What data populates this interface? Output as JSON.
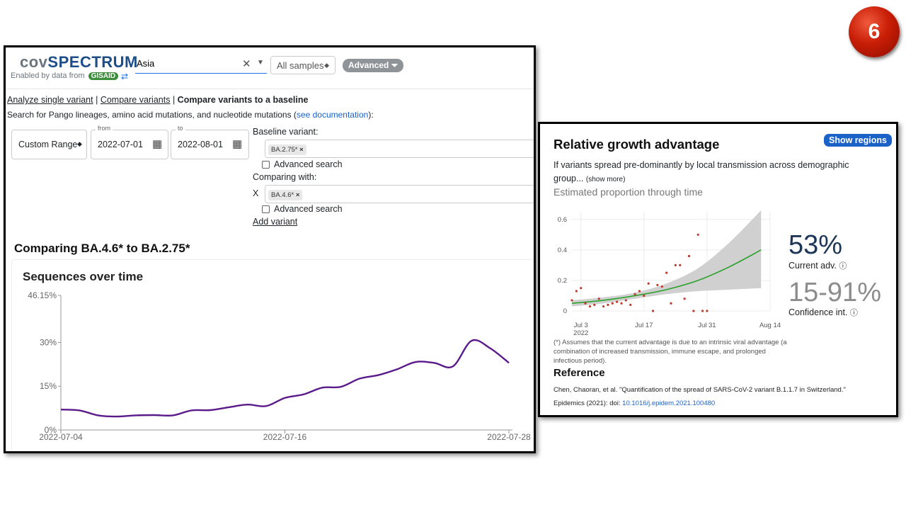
{
  "badge": {
    "number": "6"
  },
  "header": {
    "logo_part1": "cov",
    "logo_part2": "SPECTRUM",
    "logo_part3": "",
    "enabled_by": "Enabled by data from",
    "gisaid": "GISAID",
    "search_value": "Asia",
    "samples_select": "All samples",
    "advanced_label": "Advanced"
  },
  "nav": {
    "analyze_single": "Analyze single variant",
    "compare": "Compare variants",
    "compare_baseline": "Compare variants to a baseline"
  },
  "hint": {
    "text": "Search for Pango lineages, amino acid mutations, and nucleotide mutations (",
    "link": "see documentation",
    "end": "):"
  },
  "date_range": {
    "mode": "Custom Range",
    "from_label": "from",
    "from_value": "2022-07-01",
    "to_label": "to",
    "to_value": "2022-08-01"
  },
  "baseline": {
    "label": "Baseline variant:",
    "chip": "BA.2.75*",
    "advanced": "Advanced search"
  },
  "comparing": {
    "label": "Comparing with:",
    "remove": "X",
    "chip": "BA.4.6*",
    "advanced": "Advanced search",
    "add_variant": "Add variant"
  },
  "comparison_title": "Comparing BA.4.6* to BA.2.75*",
  "seq_chart": {
    "title": "Sequences over time",
    "y_ticks": [
      "0%",
      "15%",
      "30%",
      "46.15%"
    ],
    "x_ticks": [
      "2022-07-04",
      "2022-07-16",
      "2022-07-28"
    ]
  },
  "growth": {
    "title": "Relative growth advantage",
    "show_regions": "Show regions",
    "description": "If variants spread pre-dominantly by local transmission across demographic group...",
    "show_more": "(show more)",
    "subtitle": "Estimated proportion through time",
    "current_adv_value": "53%",
    "current_adv_label": "Current adv.",
    "confidence_value": "15-91%",
    "confidence_label": "Confidence int.",
    "footnote": "(*) Assumes that the current advantage is due to an intrinsic viral advantage (a combination of increased transmission, immune escape, and prolonged infectious period).",
    "reference_title": "Reference",
    "reference_text": "Chen, Chaoran, et al. \"Quantification of the spread of SARS-CoV-2 variant B.1.1.7 in Switzerland.\"",
    "reference_journal": "Epidemics (2021): doi:",
    "reference_doi": "10.1016/j.epidem.2021.100480",
    "y_ticks": [
      "0",
      "0.2",
      "0.4",
      "0.6"
    ],
    "x_ticks": [
      "Jul 3",
      "Jul 17",
      "Jul 31",
      "Aug 14"
    ],
    "x_year": "2022"
  },
  "chart_data": [
    {
      "type": "line",
      "title": "Sequences over time",
      "x": [
        "2022-07-04",
        "2022-07-05",
        "2022-07-06",
        "2022-07-07",
        "2022-07-08",
        "2022-07-09",
        "2022-07-10",
        "2022-07-11",
        "2022-07-12",
        "2022-07-13",
        "2022-07-14",
        "2022-07-15",
        "2022-07-16",
        "2022-07-17",
        "2022-07-18",
        "2022-07-19",
        "2022-07-20",
        "2022-07-21",
        "2022-07-22",
        "2022-07-23",
        "2022-07-24",
        "2022-07-25",
        "2022-07-26",
        "2022-07-27",
        "2022-07-28"
      ],
      "values": [
        7.0,
        6.7,
        5.0,
        4.6,
        5.0,
        5.1,
        5.0,
        6.7,
        6.8,
        7.8,
        8.7,
        8.2,
        11.0,
        12.2,
        14.5,
        14.8,
        17.6,
        18.8,
        20.8,
        23.3,
        23.0,
        21.8,
        30.6,
        28.0,
        23.0
      ],
      "ylabel": "",
      "ylim": [
        0,
        46.15
      ],
      "y_ticks": [
        "0%",
        "15%",
        "30%",
        "46.15%"
      ],
      "color": "#5b1a8a"
    },
    {
      "type": "scatter",
      "title": "Estimated proportion through time",
      "x_ticks": [
        "Jul 3",
        "Jul 17",
        "Jul 31",
        "Aug 14"
      ],
      "xlim": [
        "2022-07-01",
        "2022-08-14"
      ],
      "ylim": [
        0,
        0.65
      ],
      "observed_x": [
        "2022-07-01",
        "2022-07-02",
        "2022-07-03",
        "2022-07-04",
        "2022-07-05",
        "2022-07-06",
        "2022-07-07",
        "2022-07-08",
        "2022-07-09",
        "2022-07-10",
        "2022-07-11",
        "2022-07-12",
        "2022-07-13",
        "2022-07-14",
        "2022-07-15",
        "2022-07-16",
        "2022-07-17",
        "2022-07-18",
        "2022-07-19",
        "2022-07-20",
        "2022-07-21",
        "2022-07-22",
        "2022-07-23",
        "2022-07-24",
        "2022-07-25",
        "2022-07-26",
        "2022-07-27",
        "2022-07-28",
        "2022-07-29",
        "2022-07-30",
        "2022-07-31"
      ],
      "observed_y": [
        0.07,
        0.13,
        0.15,
        0.05,
        0.03,
        0.04,
        0.08,
        0.03,
        0.04,
        0.05,
        0.06,
        0.05,
        0.07,
        0.04,
        0.11,
        0.13,
        0.1,
        0.18,
        0.0,
        0.17,
        0.16,
        0.25,
        0.05,
        0.3,
        0.3,
        0.08,
        0.36,
        0.0,
        0.5,
        0.0,
        0.0
      ],
      "fit_x": [
        "2022-07-01",
        "2022-07-08",
        "2022-07-15",
        "2022-07-22",
        "2022-07-29",
        "2022-08-05",
        "2022-08-12"
      ],
      "fit_y": [
        0.05,
        0.07,
        0.1,
        0.14,
        0.2,
        0.29,
        0.4
      ],
      "ci_lower": [
        0.03,
        0.05,
        0.08,
        0.11,
        0.13,
        0.14,
        0.15
      ],
      "ci_upper": [
        0.07,
        0.09,
        0.12,
        0.18,
        0.28,
        0.45,
        0.66
      ],
      "point_color": "#c0392b",
      "fit_color": "#2ca02c",
      "band_color": "#d0d0d0"
    }
  ]
}
